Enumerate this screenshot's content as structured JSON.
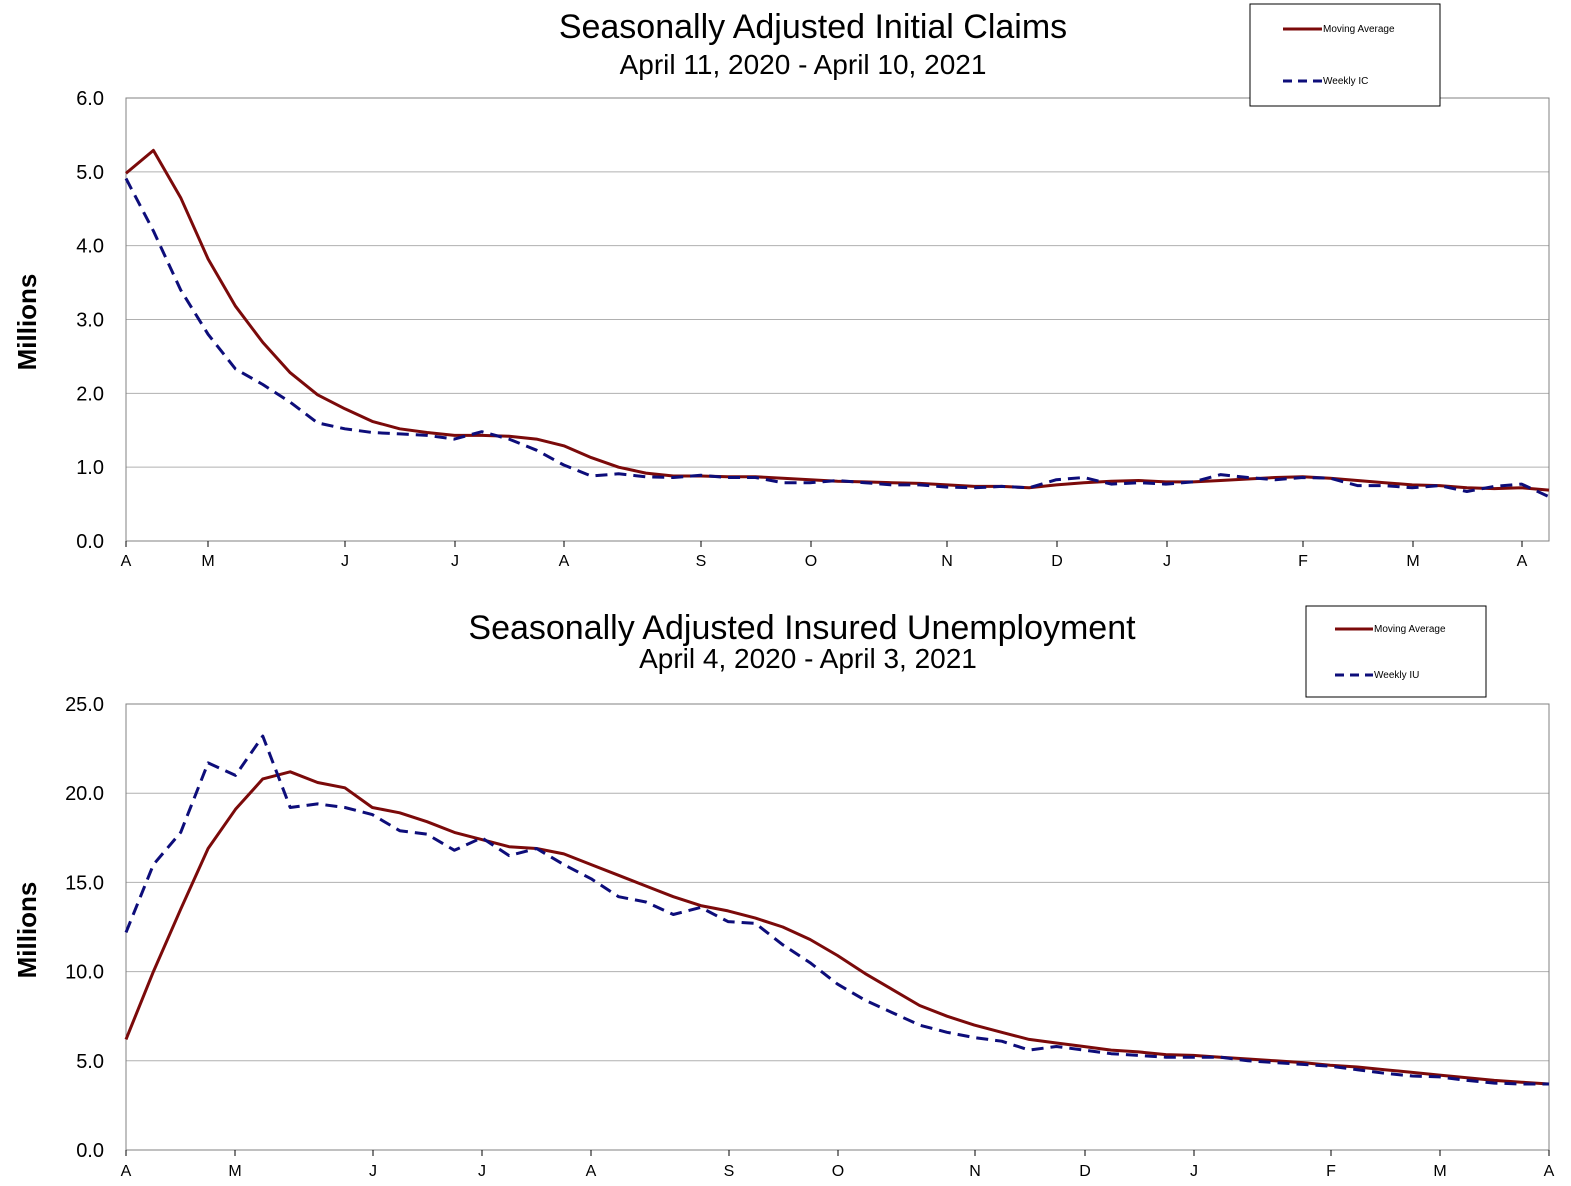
{
  "colors": {
    "moving_average": "#7b0a0a",
    "weekly": "#0d0d7a",
    "grid": "#b0b0b0",
    "axis": "#808080"
  },
  "chart_data": [
    {
      "type": "line",
      "title": "Seasonally Adjusted Initial Claims",
      "subtitle": "April 11, 2020 - April 10, 2021",
      "ylabel": "Millions",
      "ylim": [
        0,
        6
      ],
      "yticks": [
        "0.0",
        "1.0",
        "2.0",
        "3.0",
        "4.0",
        "5.0",
        "6.0"
      ],
      "xtick_labels": [
        "A",
        "M",
        "J",
        "J",
        "A",
        "S",
        "O",
        "N",
        "D",
        "J",
        "F",
        "M",
        "A"
      ],
      "grid": true,
      "legend_position": "top-right",
      "x_weeks": 52,
      "series": [
        {
          "name": "Moving Average",
          "style": "solid",
          "values": [
            4.98,
            5.29,
            4.65,
            3.82,
            3.18,
            2.69,
            2.28,
            1.98,
            1.79,
            1.62,
            1.52,
            1.47,
            1.43,
            1.43,
            1.42,
            1.38,
            1.29,
            1.13,
            1.0,
            0.92,
            0.88,
            0.88,
            0.87,
            0.87,
            0.85,
            0.83,
            0.81,
            0.8,
            0.79,
            0.78,
            0.76,
            0.74,
            0.74,
            0.72,
            0.76,
            0.79,
            0.81,
            0.82,
            0.8,
            0.8,
            0.82,
            0.84,
            0.86,
            0.87,
            0.85,
            0.82,
            0.79,
            0.76,
            0.75,
            0.72,
            0.71,
            0.72,
            0.69
          ]
        },
        {
          "name": "Weekly IC",
          "style": "dashed",
          "values": [
            4.91,
            4.2,
            3.4,
            2.8,
            2.33,
            2.12,
            1.88,
            1.6,
            1.52,
            1.47,
            1.45,
            1.43,
            1.38,
            1.48,
            1.38,
            1.23,
            1.03,
            0.88,
            0.91,
            0.87,
            0.86,
            0.89,
            0.86,
            0.86,
            0.79,
            0.79,
            0.82,
            0.79,
            0.76,
            0.76,
            0.73,
            0.72,
            0.74,
            0.72,
            0.83,
            0.86,
            0.77,
            0.79,
            0.77,
            0.8,
            0.9,
            0.86,
            0.83,
            0.86,
            0.85,
            0.75,
            0.75,
            0.72,
            0.75,
            0.67,
            0.74,
            0.77,
            0.6
          ]
        }
      ]
    },
    {
      "type": "line",
      "title": "Seasonally Adjusted Insured Unemployment",
      "subtitle": "April 4, 2020 - April 3, 2021",
      "ylabel": "Millions",
      "ylim": [
        0,
        25
      ],
      "yticks": [
        "0.0",
        "5.0",
        "10.0",
        "15.0",
        "20.0",
        "25.0"
      ],
      "xtick_labels": [
        "A",
        "M",
        "J",
        "J",
        "A",
        "S",
        "O",
        "N",
        "D",
        "J",
        "F",
        "M",
        "A"
      ],
      "grid": true,
      "legend_position": "top-right",
      "x_weeks": 52,
      "series": [
        {
          "name": "Moving Average",
          "style": "solid",
          "values": [
            6.2,
            10.0,
            13.5,
            16.9,
            19.1,
            20.8,
            21.2,
            20.6,
            20.3,
            19.2,
            18.9,
            18.4,
            17.8,
            17.4,
            17.0,
            16.9,
            16.6,
            16.0,
            15.4,
            14.8,
            14.2,
            13.7,
            13.4,
            13.0,
            12.5,
            11.8,
            10.9,
            9.9,
            9.0,
            8.1,
            7.5,
            7.0,
            6.6,
            6.2,
            6.0,
            5.8,
            5.6,
            5.5,
            5.35,
            5.3,
            5.2,
            5.1,
            5.0,
            4.9,
            4.75,
            4.65,
            4.5,
            4.35,
            4.2,
            4.05,
            3.9,
            3.8,
            3.7
          ]
        },
        {
          "name": "Weekly IU",
          "style": "dashed",
          "values": [
            12.2,
            16.0,
            17.8,
            21.7,
            21.0,
            23.2,
            19.2,
            19.4,
            19.2,
            18.8,
            17.9,
            17.7,
            16.8,
            17.5,
            16.5,
            16.9,
            16.0,
            15.2,
            14.2,
            13.9,
            13.2,
            13.6,
            12.8,
            12.7,
            11.5,
            10.5,
            9.3,
            8.4,
            7.7,
            7.0,
            6.6,
            6.3,
            6.1,
            5.6,
            5.8,
            5.6,
            5.4,
            5.3,
            5.2,
            5.2,
            5.2,
            5.0,
            4.9,
            4.8,
            4.7,
            4.5,
            4.3,
            4.15,
            4.1,
            3.9,
            3.75,
            3.7,
            3.7
          ]
        }
      ]
    }
  ]
}
